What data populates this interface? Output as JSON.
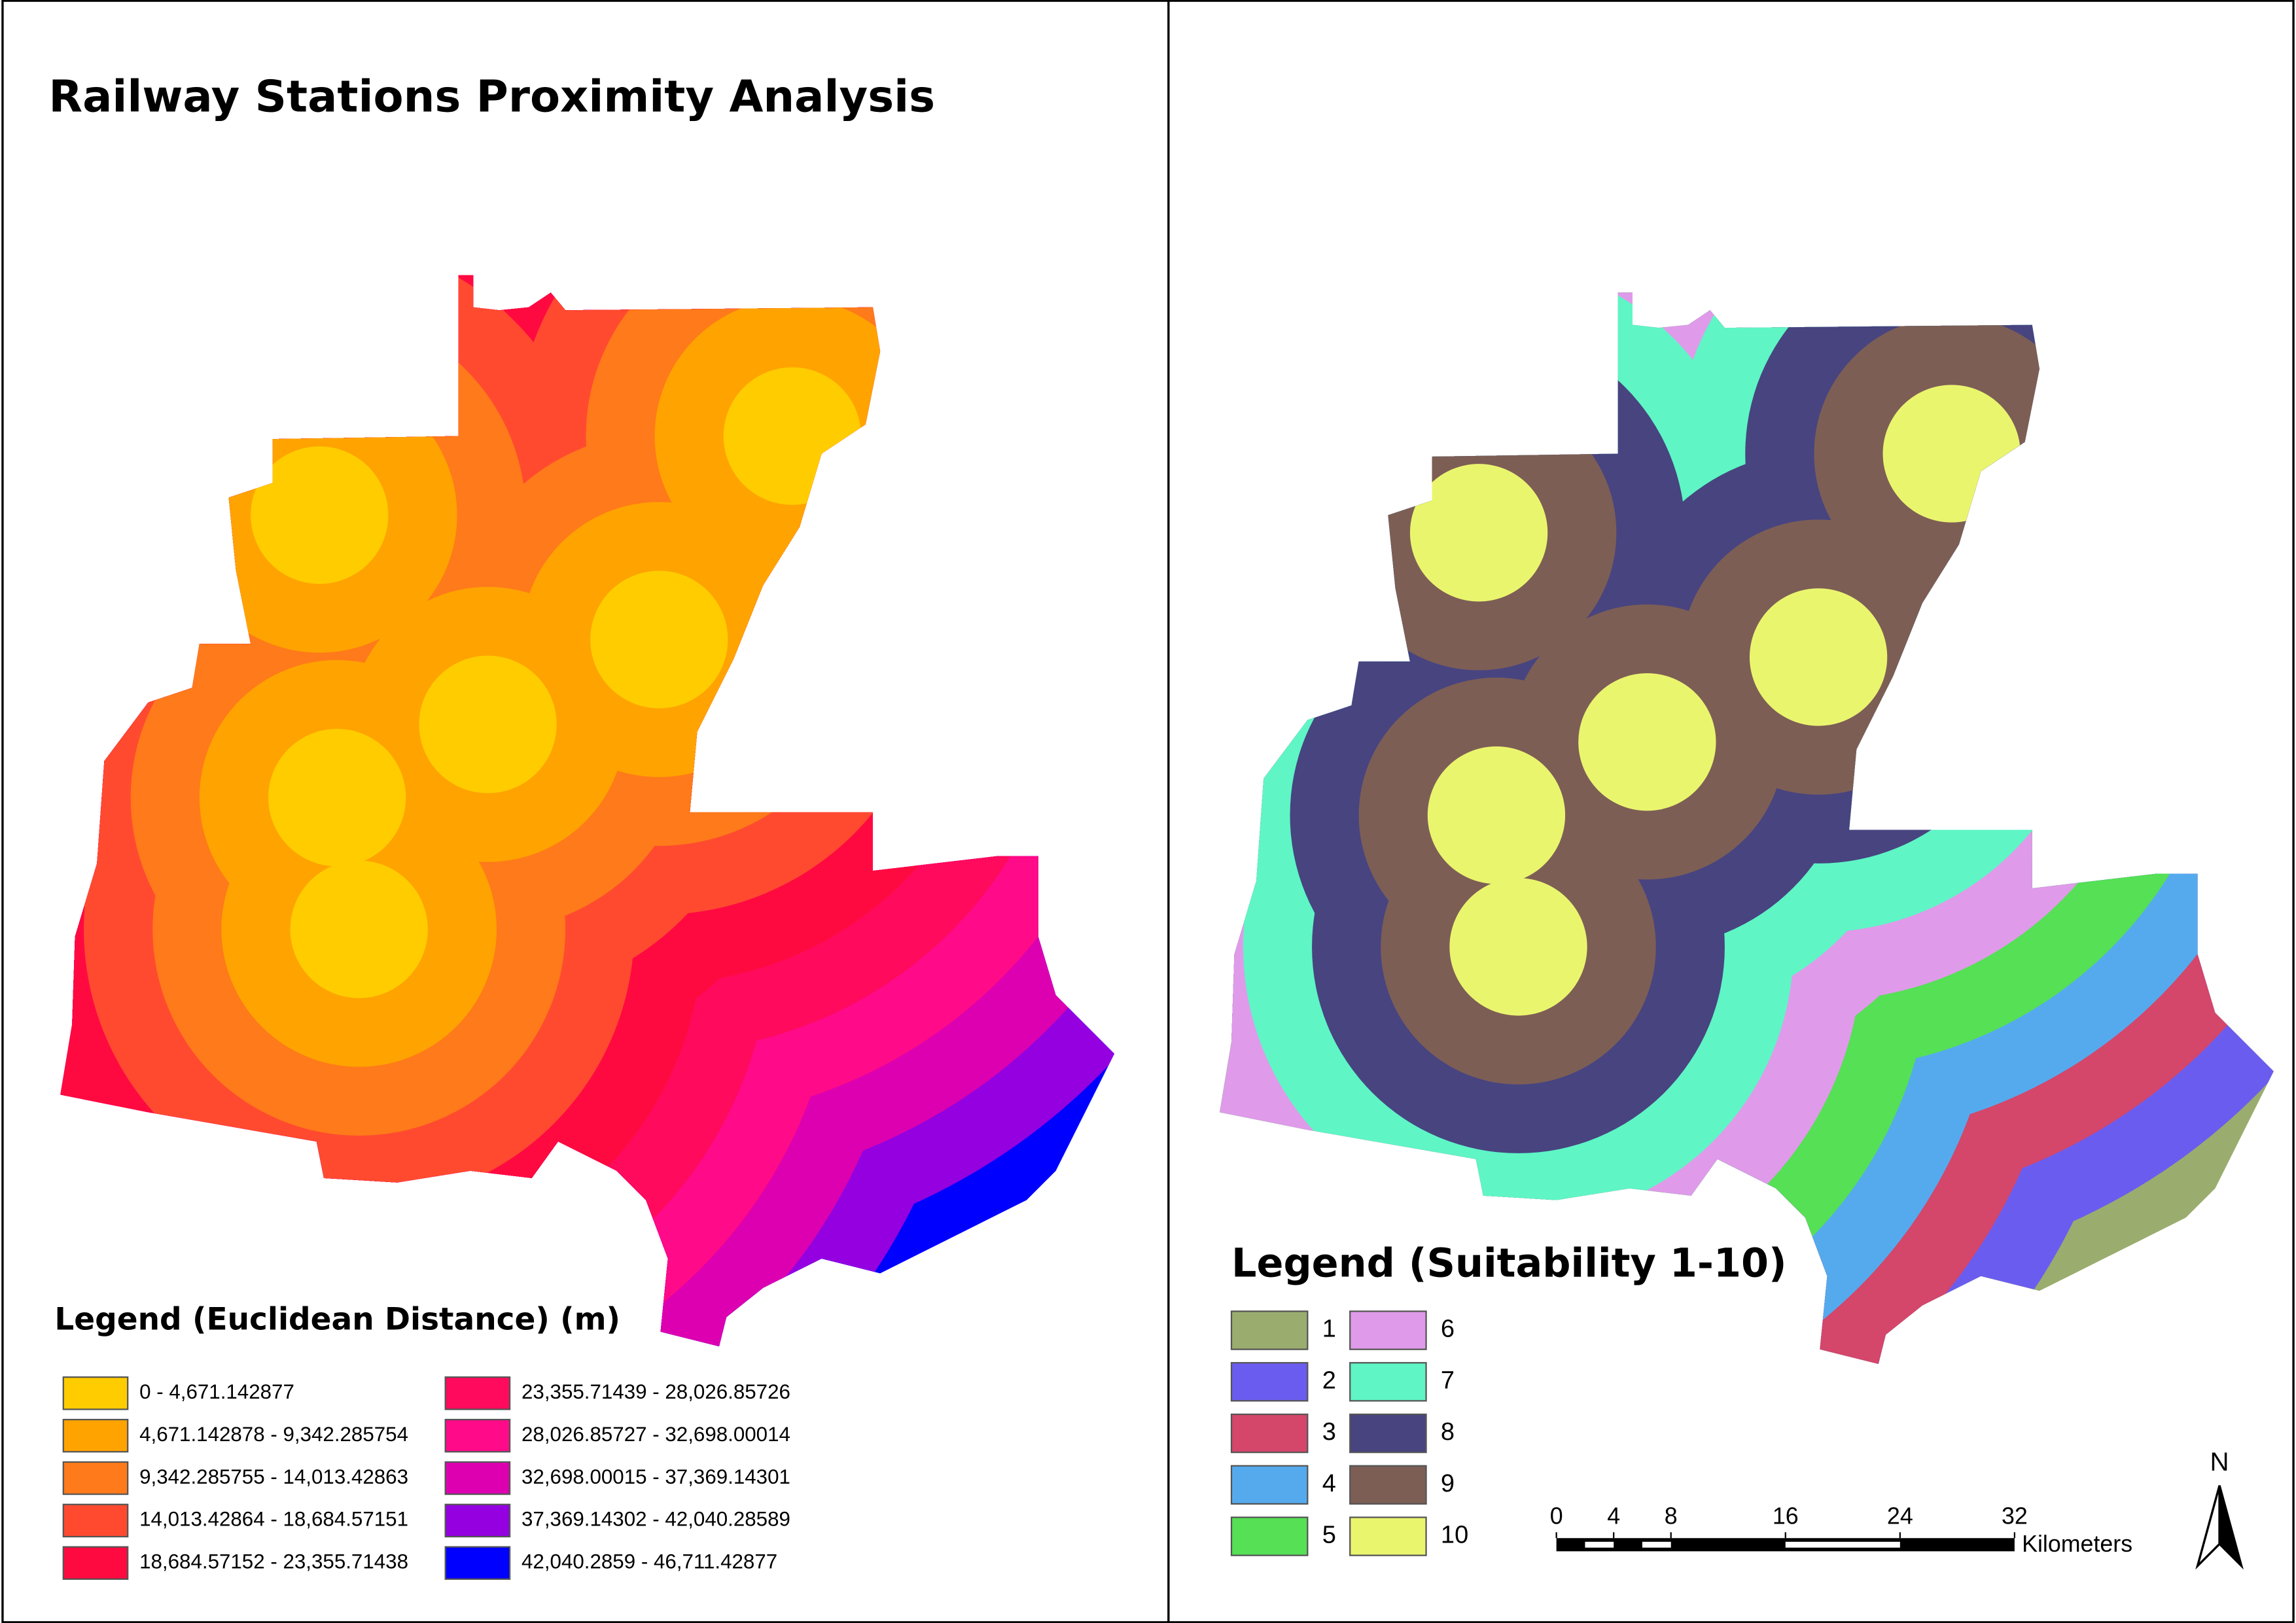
{
  "title": "Railway Stations Proximity Analysis",
  "distance_legend": {
    "title": "Legend (Euclidean Distance) (m)",
    "items": [
      {
        "label": "0 - 4,671.142877",
        "color": "#ffcc00"
      },
      {
        "label": "4,671.142878 - 9,342.285754",
        "color": "#ffa300"
      },
      {
        "label": "9,342.285755 - 14,013.42863",
        "color": "#ff7a1a"
      },
      {
        "label": "14,013.42864 - 18,684.57151",
        "color": "#ff4a30"
      },
      {
        "label": "18,684.57152 - 23,355.71438",
        "color": "#ff0a40"
      },
      {
        "label": "23,355.71439 - 28,026.85726",
        "color": "#ff0a5c"
      },
      {
        "label": "28,026.85727 - 32,698.00014",
        "color": "#ff0a88"
      },
      {
        "label": "32,698.00015 - 37,369.14301",
        "color": "#dd00b0"
      },
      {
        "label": "37,369.14302 - 42,040.28589",
        "color": "#9400e0"
      },
      {
        "label": "42,040.2859 - 46,711.42877",
        "color": "#0000ff"
      }
    ]
  },
  "suitability_legend": {
    "title": "Legend (Suitability 1-10)",
    "items": [
      {
        "label": "1",
        "color": "#9aad6e"
      },
      {
        "label": "2",
        "color": "#6b5cf0"
      },
      {
        "label": "3",
        "color": "#d4466a"
      },
      {
        "label": "4",
        "color": "#55aaee"
      },
      {
        "label": "5",
        "color": "#55e055"
      },
      {
        "label": "6",
        "color": "#e09aea"
      },
      {
        "label": "7",
        "color": "#5ff5c5"
      },
      {
        "label": "8",
        "color": "#474480"
      },
      {
        "label": "9",
        "color": "#7d5e55"
      },
      {
        "label": "10",
        "color": "#eaf56e"
      }
    ]
  },
  "scale_bar": {
    "ticks": [
      0,
      4,
      8,
      16,
      24,
      32
    ],
    "unit": "Kilometers"
  },
  "north_arrow": "N"
}
